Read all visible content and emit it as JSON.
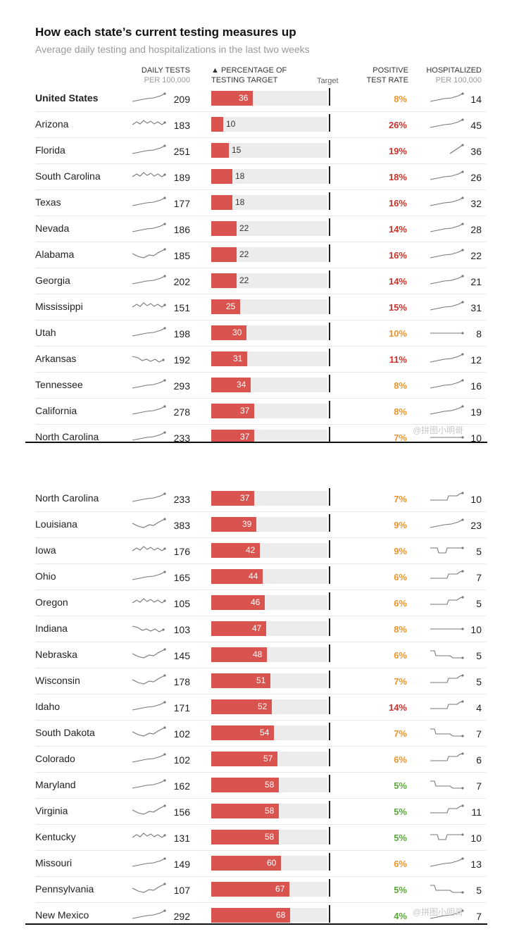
{
  "title": "How each state’s current testing measures up",
  "subtitle": "Average daily testing and hospitalizations in the last two weeks",
  "headers": {
    "tests_line1": "DAILY TESTS",
    "tests_line2": "PER 100,000",
    "pct_line1": "▲ PERCENTAGE OF",
    "pct_line2": "TESTING TARGET",
    "target": "Target",
    "pos_line1": "POSITIVE",
    "pos_line2": "TEST RATE",
    "hosp_line1": "HOSPITALIZED",
    "hosp_line2": "PER 100,000"
  },
  "watermark": "@拼图小明哥",
  "colors": {
    "bar": "#d9534f",
    "track": "#ececec",
    "pos_high": "#c8342b",
    "pos_mid": "#e8952e",
    "pos_low": "#5aa83a"
  },
  "chart_data": {
    "type": "table",
    "columns": [
      "state",
      "daily_tests_per_100k",
      "pct_testing_target",
      "positive_test_rate",
      "hospitalized_per_100k"
    ],
    "panel1": [
      {
        "state": "United States",
        "tests": 209,
        "pct": 36,
        "pos": "8%",
        "pos_level": "mid",
        "hosp": 14,
        "bold": true,
        "ts": "up",
        "hs": "up"
      },
      {
        "state": "Arizona",
        "tests": 183,
        "pct": 10,
        "pos": "26%",
        "pos_level": "high",
        "hosp": 45,
        "ts": "wiggle",
        "hs": "up"
      },
      {
        "state": "Florida",
        "tests": 251,
        "pct": 15,
        "pos": "19%",
        "pos_level": "high",
        "hosp": 36,
        "ts": "up",
        "hs": "short"
      },
      {
        "state": "South Carolina",
        "tests": 189,
        "pct": 18,
        "pos": "18%",
        "pos_level": "high",
        "hosp": 26,
        "ts": "wiggle",
        "hs": "up"
      },
      {
        "state": "Texas",
        "tests": 177,
        "pct": 18,
        "pos": "16%",
        "pos_level": "high",
        "hosp": 32,
        "ts": "up",
        "hs": "up"
      },
      {
        "state": "Nevada",
        "tests": 186,
        "pct": 22,
        "pos": "14%",
        "pos_level": "high",
        "hosp": 28,
        "ts": "up",
        "hs": "up"
      },
      {
        "state": "Alabama",
        "tests": 185,
        "pct": 22,
        "pos": "16%",
        "pos_level": "high",
        "hosp": 22,
        "ts": "dipup",
        "hs": "up"
      },
      {
        "state": "Georgia",
        "tests": 202,
        "pct": 22,
        "pos": "14%",
        "pos_level": "high",
        "hosp": 21,
        "ts": "up",
        "hs": "up"
      },
      {
        "state": "Mississippi",
        "tests": 151,
        "pct": 25,
        "pos": "15%",
        "pos_level": "high",
        "hosp": 31,
        "ts": "wiggle",
        "hs": "up"
      },
      {
        "state": "Utah",
        "tests": 198,
        "pct": 30,
        "pos": "10%",
        "pos_level": "mid",
        "hosp": 8,
        "ts": "up",
        "hs": "flat"
      },
      {
        "state": "Arkansas",
        "tests": 192,
        "pct": 31,
        "pos": "11%",
        "pos_level": "high",
        "hosp": 12,
        "ts": "down",
        "hs": "up"
      },
      {
        "state": "Tennessee",
        "tests": 293,
        "pct": 34,
        "pos": "8%",
        "pos_level": "mid",
        "hosp": 16,
        "ts": "up",
        "hs": "up"
      },
      {
        "state": "California",
        "tests": 278,
        "pct": 37,
        "pos": "8%",
        "pos_level": "mid",
        "hosp": 19,
        "ts": "up",
        "hs": "up"
      },
      {
        "state": "North Carolina",
        "tests": 233,
        "pct": 37,
        "pos": "7%",
        "pos_level": "mid",
        "hosp": 10,
        "ts": "up",
        "hs": "flat"
      }
    ],
    "panel2": [
      {
        "state": "North Carolina",
        "tests": 233,
        "pct": 37,
        "pos": "7%",
        "pos_level": "mid",
        "hosp": 10,
        "ts": "up",
        "hs": "step"
      },
      {
        "state": "Louisiana",
        "tests": 383,
        "pct": 39,
        "pos": "9%",
        "pos_level": "mid",
        "hosp": 23,
        "ts": "dipup",
        "hs": "up"
      },
      {
        "state": "Iowa",
        "tests": 176,
        "pct": 42,
        "pos": "9%",
        "pos_level": "mid",
        "hosp": 5,
        "ts": "wiggle",
        "hs": "dip"
      },
      {
        "state": "Ohio",
        "tests": 165,
        "pct": 44,
        "pos": "6%",
        "pos_level": "mid",
        "hosp": 7,
        "ts": "up",
        "hs": "step"
      },
      {
        "state": "Oregon",
        "tests": 105,
        "pct": 46,
        "pos": "6%",
        "pos_level": "mid",
        "hosp": 5,
        "ts": "wiggle",
        "hs": "step"
      },
      {
        "state": "Indiana",
        "tests": 103,
        "pct": 47,
        "pos": "8%",
        "pos_level": "mid",
        "hosp": 10,
        "ts": "down",
        "hs": "flat"
      },
      {
        "state": "Nebraska",
        "tests": 145,
        "pct": 48,
        "pos": "6%",
        "pos_level": "mid",
        "hosp": 5,
        "ts": "dipup",
        "hs": "stepdown"
      },
      {
        "state": "Wisconsin",
        "tests": 178,
        "pct": 51,
        "pos": "7%",
        "pos_level": "mid",
        "hosp": 5,
        "ts": "dipup",
        "hs": "step"
      },
      {
        "state": "Idaho",
        "tests": 171,
        "pct": 52,
        "pos": "14%",
        "pos_level": "high",
        "hosp": 4,
        "ts": "up",
        "hs": "step"
      },
      {
        "state": "South Dakota",
        "tests": 102,
        "pct": 54,
        "pos": "7%",
        "pos_level": "mid",
        "hosp": 7,
        "ts": "dipup",
        "hs": "stepdown"
      },
      {
        "state": "Colorado",
        "tests": 102,
        "pct": 57,
        "pos": "6%",
        "pos_level": "mid",
        "hosp": 6,
        "ts": "up",
        "hs": "step"
      },
      {
        "state": "Maryland",
        "tests": 162,
        "pct": 58,
        "pos": "5%",
        "pos_level": "low",
        "hosp": 7,
        "ts": "up",
        "hs": "stepdown"
      },
      {
        "state": "Virginia",
        "tests": 156,
        "pct": 58,
        "pos": "5%",
        "pos_level": "low",
        "hosp": 11,
        "ts": "dipup",
        "hs": "step"
      },
      {
        "state": "Kentucky",
        "tests": 131,
        "pct": 58,
        "pos": "5%",
        "pos_level": "low",
        "hosp": 10,
        "ts": "wiggle",
        "hs": "dip"
      },
      {
        "state": "Missouri",
        "tests": 149,
        "pct": 60,
        "pos": "6%",
        "pos_level": "mid",
        "hosp": 13,
        "ts": "up",
        "hs": "up"
      },
      {
        "state": "Pennsylvania",
        "tests": 107,
        "pct": 67,
        "pos": "5%",
        "pos_level": "low",
        "hosp": 5,
        "ts": "dipup",
        "hs": "stepdown"
      },
      {
        "state": "New Mexico",
        "tests": 292,
        "pct": 68,
        "pos": "4%",
        "pos_level": "low",
        "hosp": 7,
        "ts": "up",
        "hs": "up"
      }
    ]
  }
}
